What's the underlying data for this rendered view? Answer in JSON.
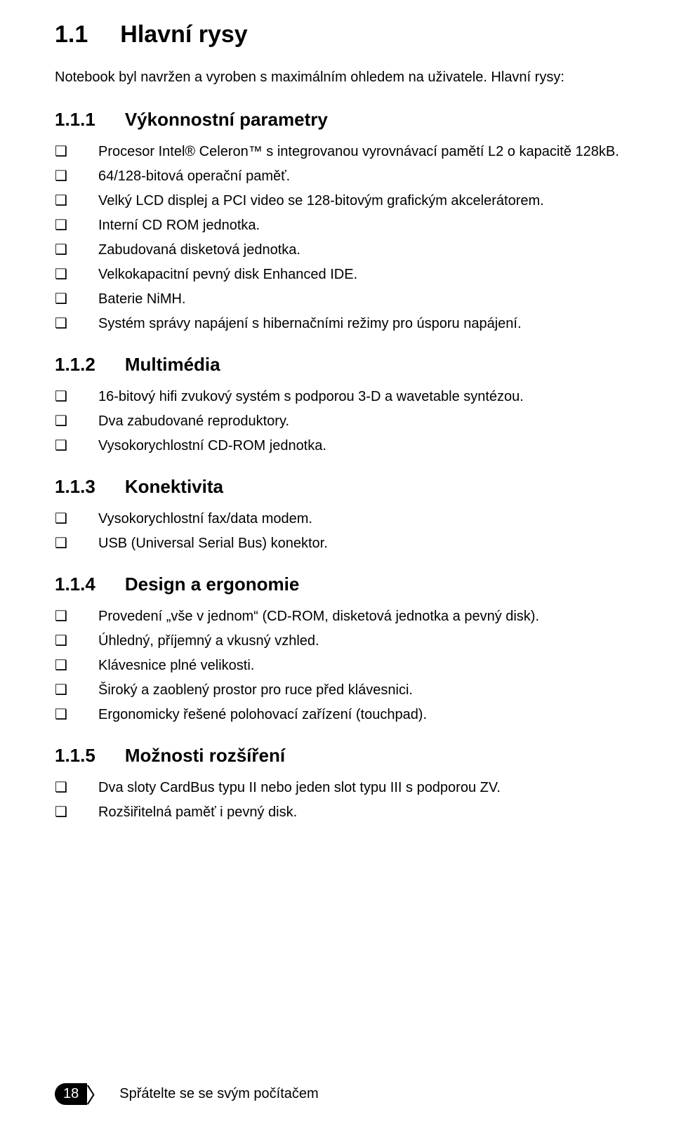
{
  "title": {
    "number": "1.1",
    "text": "Hlavní rysy"
  },
  "intro": "Notebook byl navržen a vyroben s maximálním ohledem na uživatele. Hlavní rysy:",
  "sections": [
    {
      "number": "1.1.1",
      "heading": "Výkonnostní parametry",
      "items": [
        "Procesor Intel® Celeron™ s integrovanou vyrovnávací pamětí L2 o kapacitě 128kB.",
        "64/128-bitová operační paměť.",
        "Velký LCD displej a PCI video se 128-bitovým grafickým akcelerátorem.",
        "Interní CD ROM jednotka.",
        "Zabudovaná disketová jednotka.",
        "Velkokapacitní pevný disk Enhanced IDE.",
        "Baterie NiMH.",
        "Systém správy napájení s hibernačními režimy pro úsporu napájení."
      ]
    },
    {
      "number": "1.1.2",
      "heading": "Multimédia",
      "items": [
        "16-bitový hifi zvukový systém s podporou 3-D a wavetable syntézou.",
        "Dva zabudované reproduktory.",
        "Vysokorychlostní CD-ROM jednotka."
      ]
    },
    {
      "number": "1.1.3",
      "heading": "Konektivita",
      "items": [
        "Vysokorychlostní  fax/data modem.",
        "USB (Universal Serial Bus) konektor."
      ]
    },
    {
      "number": "1.1.4",
      "heading": "Design a ergonomie",
      "items": [
        "Provedení „vše v jednom“ (CD-ROM, disketová jednotka a pevný disk).",
        "Úhledný, příjemný a vkusný vzhled.",
        "Klávesnice plné velikosti.",
        "Široký a zaoblený prostor pro ruce před klávesnici.",
        "Ergonomicky řešené polohovací zařízení (touchpad)."
      ]
    },
    {
      "number": "1.1.5",
      "heading": "Možnosti rozšíření",
      "items": [
        "Dva sloty CardBus typu II nebo jeden slot typu III s podporou ZV.",
        "Rozšiřitelná paměť i pevný disk."
      ]
    }
  ],
  "footer": {
    "page_number": "18",
    "text": "Spřátelte se se svým počítačem"
  }
}
